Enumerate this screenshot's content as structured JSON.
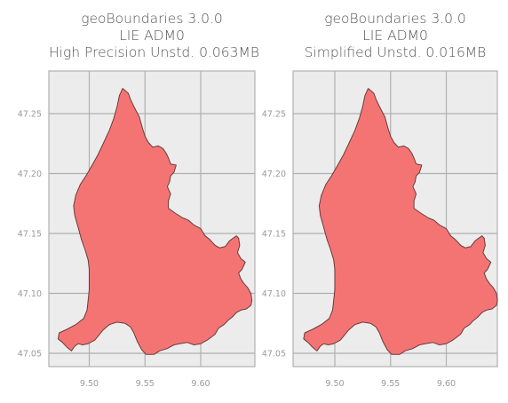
{
  "panels": [
    {
      "id": "left",
      "title": [
        "geoBoundaries 3.0.0",
        "LIE ADM0",
        "High Precision Unstd. 0.063MB"
      ],
      "x_ticks": [
        "9.50",
        "9.55",
        "9.60"
      ],
      "y_ticks": [
        "47.25",
        "47.20",
        "47.15",
        "47.10",
        "47.05"
      ]
    },
    {
      "id": "right",
      "title": [
        "geoBoundaries 3.0.0",
        "LIE ADM0",
        "Simplified Unstd. 0.016MB"
      ],
      "x_ticks": [
        "9.50",
        "9.55",
        "9.60"
      ],
      "y_ticks": [
        "47.25",
        "47.20",
        "47.15",
        "47.10",
        "47.05"
      ]
    }
  ],
  "map_data": {
    "x_tick_values": [
      9.5,
      9.55,
      9.6
    ],
    "y_tick_values": [
      47.25,
      47.2,
      47.15,
      47.1,
      47.05
    ],
    "boundary_fill": "#f47474",
    "boundary_stroke": "#6b3a3a",
    "background": "#ececec",
    "grid_color": "#b0b0b0",
    "boundary_lonlat": [
      [
        9.53,
        47.271
      ],
      [
        9.535,
        47.267
      ],
      [
        9.537,
        47.262
      ],
      [
        9.54,
        47.256
      ],
      [
        9.545,
        47.247
      ],
      [
        9.548,
        47.237
      ],
      [
        9.55,
        47.231
      ],
      [
        9.553,
        47.226
      ],
      [
        9.557,
        47.222
      ],
      [
        9.562,
        47.223
      ],
      [
        9.566,
        47.221
      ],
      [
        9.569,
        47.217
      ],
      [
        9.571,
        47.213
      ],
      [
        9.573,
        47.208
      ],
      [
        9.578,
        47.207
      ],
      [
        9.576,
        47.201
      ],
      [
        9.573,
        47.198
      ],
      [
        9.572,
        47.193
      ],
      [
        9.57,
        47.189
      ],
      [
        9.573,
        47.183
      ],
      [
        9.571,
        47.177
      ],
      [
        9.571,
        47.171
      ],
      [
        9.577,
        47.167
      ],
      [
        9.584,
        47.163
      ],
      [
        9.589,
        47.161
      ],
      [
        9.594,
        47.157
      ],
      [
        9.6,
        47.154
      ],
      [
        9.604,
        47.148
      ],
      [
        9.608,
        47.145
      ],
      [
        9.613,
        47.14
      ],
      [
        9.617,
        47.138
      ],
      [
        9.622,
        47.139
      ],
      [
        9.626,
        47.144
      ],
      [
        9.632,
        47.148
      ],
      [
        9.634,
        47.146
      ],
      [
        9.635,
        47.14
      ],
      [
        9.633,
        47.134
      ],
      [
        9.636,
        47.129
      ],
      [
        9.64,
        47.126
      ],
      [
        9.637,
        47.12
      ],
      [
        9.634,
        47.117
      ],
      [
        9.636,
        47.112
      ],
      [
        9.639,
        47.108
      ],
      [
        9.642,
        47.105
      ],
      [
        9.645,
        47.1
      ],
      [
        9.646,
        47.094
      ],
      [
        9.645,
        47.09
      ],
      [
        9.641,
        47.087
      ],
      [
        9.636,
        47.086
      ],
      [
        9.632,
        47.084
      ],
      [
        9.628,
        47.08
      ],
      [
        9.624,
        47.077
      ],
      [
        9.621,
        47.074
      ],
      [
        9.616,
        47.071
      ],
      [
        9.613,
        47.066
      ],
      [
        9.606,
        47.061
      ],
      [
        9.6,
        47.058
      ],
      [
        9.594,
        47.057
      ],
      [
        9.588,
        47.059
      ],
      [
        9.581,
        47.058
      ],
      [
        9.576,
        47.057
      ],
      [
        9.57,
        47.054
      ],
      [
        9.563,
        47.052
      ],
      [
        9.558,
        47.049
      ],
      [
        9.551,
        47.049
      ],
      [
        9.547,
        47.053
      ],
      [
        9.543,
        47.06
      ],
      [
        9.54,
        47.067
      ],
      [
        9.537,
        47.072
      ],
      [
        9.532,
        47.075
      ],
      [
        9.525,
        47.076
      ],
      [
        9.518,
        47.074
      ],
      [
        9.512,
        47.069
      ],
      [
        9.505,
        47.061
      ],
      [
        9.499,
        47.058
      ],
      [
        9.494,
        47.057
      ],
      [
        9.49,
        47.058
      ],
      [
        9.487,
        47.056
      ],
      [
        9.484,
        47.052
      ],
      [
        9.48,
        47.055
      ],
      [
        9.476,
        47.059
      ],
      [
        9.472,
        47.062
      ],
      [
        9.473,
        47.067
      ],
      [
        9.48,
        47.07
      ],
      [
        9.488,
        47.074
      ],
      [
        9.495,
        47.079
      ],
      [
        9.498,
        47.086
      ],
      [
        9.499,
        47.094
      ],
      [
        9.5,
        47.103
      ],
      [
        9.5,
        47.111
      ],
      [
        9.5,
        47.12
      ],
      [
        9.499,
        47.128
      ],
      [
        9.496,
        47.137
      ],
      [
        9.493,
        47.145
      ],
      [
        9.49,
        47.155
      ],
      [
        9.487,
        47.165
      ],
      [
        9.486,
        47.173
      ],
      [
        9.488,
        47.182
      ],
      [
        9.492,
        47.191
      ],
      [
        9.497,
        47.198
      ],
      [
        9.502,
        47.206
      ],
      [
        9.508,
        47.216
      ],
      [
        9.512,
        47.224
      ],
      [
        9.518,
        47.236
      ],
      [
        9.522,
        47.246
      ],
      [
        9.525,
        47.256
      ],
      [
        9.527,
        47.265
      ]
    ]
  }
}
